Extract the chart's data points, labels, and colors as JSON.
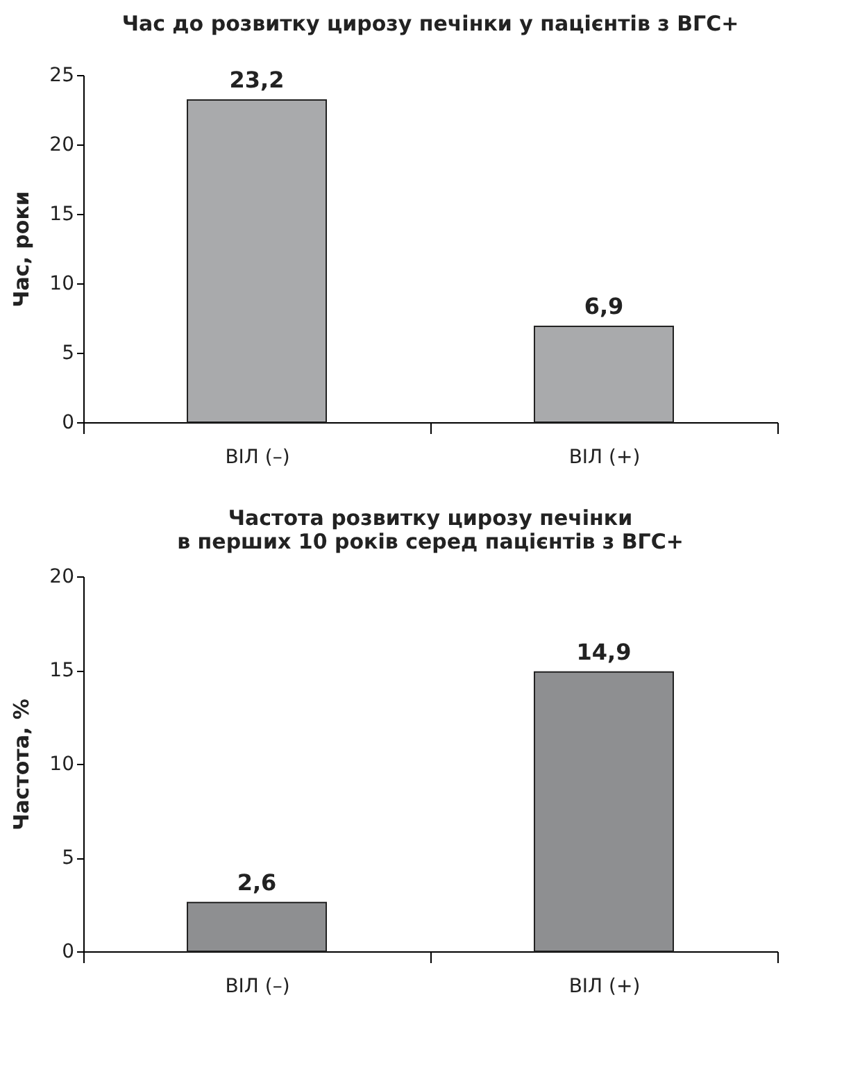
{
  "chart_data": [
    {
      "type": "bar",
      "title": "Час до розвитку цирозу печінки у пацієнтів з ВГС+",
      "ylabel": "Час, роки",
      "categories": [
        "ВІЛ (–)",
        "ВІЛ (+)"
      ],
      "values": [
        23.2,
        6.9
      ],
      "value_labels": [
        "23,2",
        "6,9"
      ],
      "color": "#a9aaac",
      "ylim": [
        0,
        25
      ],
      "yticks": [
        0,
        5,
        10,
        15,
        20,
        25
      ]
    },
    {
      "type": "bar",
      "title": "Частота розвитку цирозу печінки\nв перших 10 років серед пацієнтів з ВГС+",
      "ylabel": "Частота, %",
      "categories": [
        "ВІЛ (–)",
        "ВІЛ (+)"
      ],
      "values": [
        2.6,
        14.9
      ],
      "value_labels": [
        "2,6",
        "14,9"
      ],
      "color": "#8e8f91",
      "ylim": [
        0,
        20
      ],
      "yticks": [
        0,
        5,
        10,
        15,
        20
      ]
    }
  ]
}
